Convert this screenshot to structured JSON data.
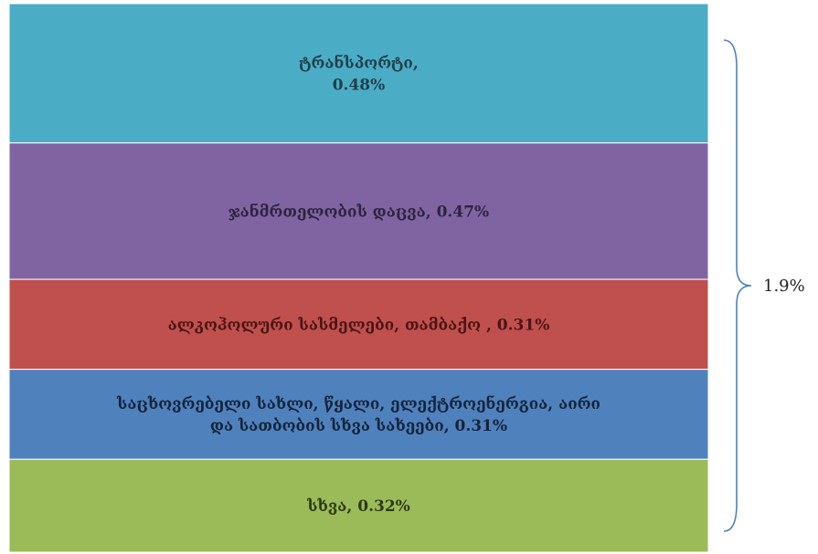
{
  "chart_data": {
    "type": "bar",
    "stacked": true,
    "categories": [
      ""
    ],
    "series": [
      {
        "name": "ტრანსპორტი",
        "value": 0.48,
        "label_lines": [
          "ტრანსპორტი,",
          "0.48%"
        ],
        "color": "#4BACC6",
        "text_color": "#1F3F4A"
      },
      {
        "name": "ჯანმრთელობის დაცვა",
        "value": 0.47,
        "label_lines": [
          "ჯანმრთელობის დაცვა, 0.47%"
        ],
        "color": "#8064A2",
        "text_color": "#2E2340"
      },
      {
        "name": "ალკოჰოლური სასმელები, თამბაქო",
        "value": 0.31,
        "label_lines": [
          "ალკოჰოლური სასმელები, თამბაქო , 0.31%"
        ],
        "color": "#C0504D",
        "text_color": "#4A1514"
      },
      {
        "name": "საცხოვრებელი სახლი, წყალი, ელექტროენერგია, აირი და სათბობის სხვა სახეები",
        "value": 0.31,
        "label_lines": [
          "საცხოვრებელი სახლი, წყალი, ელექტროენერგია, აირი",
          "და სათბობის სხვა სახეები, 0.31%"
        ],
        "color": "#4F81BD",
        "text_color": "#14243A"
      },
      {
        "name": "სხვა",
        "value": 0.32,
        "label_lines": [
          "სხვა, 0.32%"
        ],
        "color": "#9BBB59",
        "text_color": "#2E3A14"
      }
    ],
    "total_label": "1.9%",
    "unit": "%"
  }
}
